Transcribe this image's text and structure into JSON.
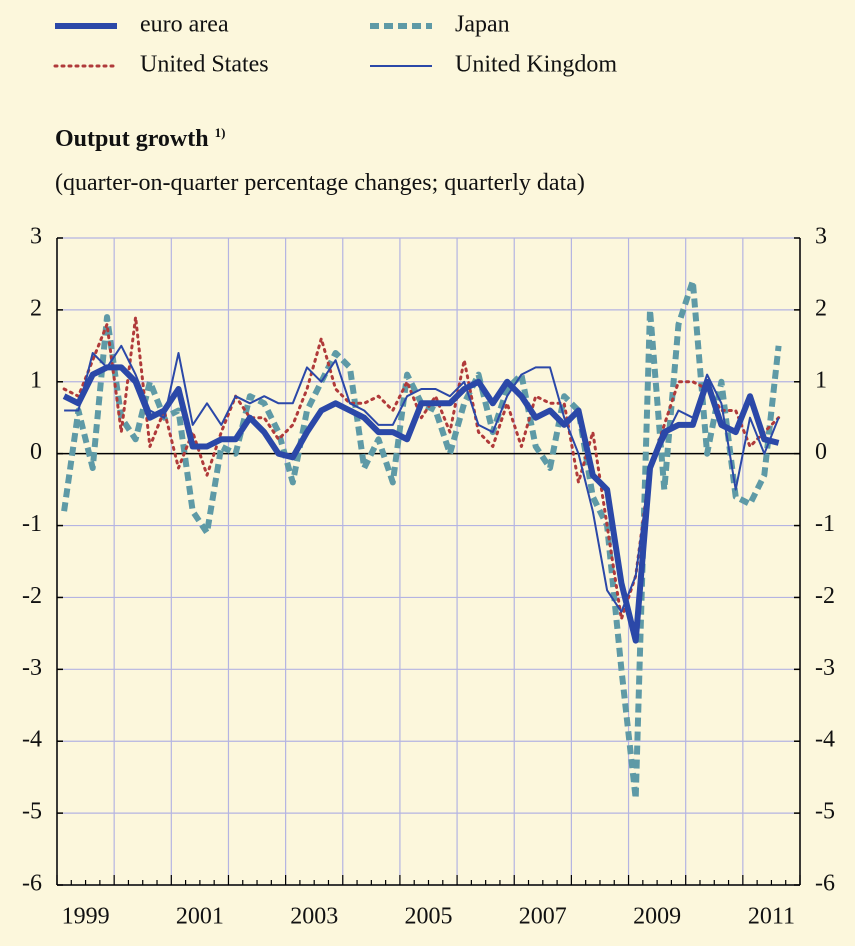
{
  "chart_data": {
    "type": "line",
    "title": "Output growth",
    "title_note": "1)",
    "subtitle": "(quarter-on-quarter percentage changes; quarterly data)",
    "categories": [
      "1999",
      null,
      null,
      null,
      null,
      null,
      null,
      null,
      "2001",
      null,
      null,
      null,
      null,
      null,
      null,
      null,
      "2003",
      null,
      null,
      null,
      null,
      null,
      null,
      null,
      "2005",
      null,
      null,
      null,
      null,
      null,
      null,
      null,
      "2007",
      null,
      null,
      null,
      null,
      null,
      null,
      null,
      "2009",
      null,
      null,
      null,
      null,
      null,
      null,
      null,
      "2011",
      null,
      null
    ],
    "series": [
      {
        "name": "euro area",
        "color": "#2b48a8",
        "style": "solid",
        "width": 6,
        "values": [
          0.8,
          0.7,
          1.1,
          1.2,
          1.2,
          1.0,
          0.5,
          0.6,
          0.9,
          0.1,
          0.1,
          0.2,
          0.2,
          0.5,
          0.3,
          0.0,
          -0.05,
          0.3,
          0.6,
          0.7,
          0.6,
          0.5,
          0.3,
          0.3,
          0.2,
          0.7,
          0.7,
          0.7,
          0.9,
          1.0,
          0.7,
          1.0,
          0.8,
          0.5,
          0.6,
          0.4,
          0.6,
          -0.3,
          -0.5,
          -1.8,
          -2.6,
          -0.2,
          0.3,
          0.4,
          0.4,
          1.0,
          0.4,
          0.3,
          0.8,
          0.2,
          0.15
        ]
      },
      {
        "name": "United States",
        "color": "#b03a3a",
        "style": "dotted",
        "width": 3,
        "values": [
          0.9,
          0.8,
          1.3,
          1.8,
          0.3,
          1.9,
          0.1,
          0.6,
          -0.2,
          0.3,
          -0.3,
          0.3,
          0.8,
          0.5,
          0.5,
          0.2,
          0.4,
          0.9,
          1.6,
          0.9,
          0.7,
          0.7,
          0.8,
          0.6,
          1.0,
          0.5,
          0.8,
          0.3,
          1.3,
          0.3,
          0.1,
          0.7,
          0.1,
          0.8,
          0.7,
          0.7,
          -0.4,
          0.3,
          -1.0,
          -2.3,
          -1.7,
          -0.2,
          0.4,
          1.0,
          1.0,
          0.9,
          0.6,
          0.6,
          0.1,
          0.3,
          0.5
        ]
      },
      {
        "name": "Japan",
        "color": "#5e9aa6",
        "style": "dashed",
        "width": 6,
        "values": [
          -0.8,
          0.6,
          -0.2,
          1.9,
          0.5,
          0.2,
          1.0,
          0.5,
          0.6,
          -0.8,
          -1.1,
          0.1,
          0.0,
          0.8,
          0.7,
          0.3,
          -0.4,
          0.6,
          1.0,
          1.4,
          1.2,
          -0.2,
          0.2,
          -0.4,
          1.1,
          0.7,
          0.6,
          0.0,
          0.7,
          1.1,
          0.3,
          0.9,
          1.1,
          0.1,
          -0.2,
          0.8,
          0.6,
          -0.6,
          -1.0,
          -3.0,
          -4.8,
          2.0,
          -0.5,
          1.8,
          2.4,
          0.0,
          1.0,
          -0.6,
          -0.7,
          -0.3,
          1.5
        ]
      },
      {
        "name": "United Kingdom",
        "color": "#2b48a8",
        "style": "solid",
        "width": 2,
        "values": [
          0.6,
          0.6,
          1.4,
          1.2,
          1.5,
          1.1,
          0.6,
          0.5,
          1.4,
          0.4,
          0.7,
          0.4,
          0.8,
          0.7,
          0.8,
          0.7,
          0.7,
          1.2,
          1.0,
          1.3,
          0.7,
          0.6,
          0.4,
          0.4,
          0.8,
          0.9,
          0.9,
          0.8,
          1.0,
          0.4,
          0.3,
          0.8,
          1.1,
          1.2,
          1.2,
          0.5,
          0.0,
          -0.8,
          -1.9,
          -2.2,
          -1.7,
          -0.2,
          0.2,
          0.6,
          0.5,
          1.1,
          0.7,
          -0.5,
          0.5,
          0.0,
          0.5
        ]
      }
    ],
    "ylim": [
      -6,
      3
    ],
    "yticks": [
      -6,
      -5,
      -4,
      -3,
      -2,
      -1,
      0,
      1,
      2,
      3
    ],
    "y2lim": [
      -6,
      3
    ],
    "y2ticks": [
      -6,
      -5,
      -4,
      -3,
      -2,
      -1,
      0,
      1,
      2,
      3
    ],
    "grid": true
  }
}
